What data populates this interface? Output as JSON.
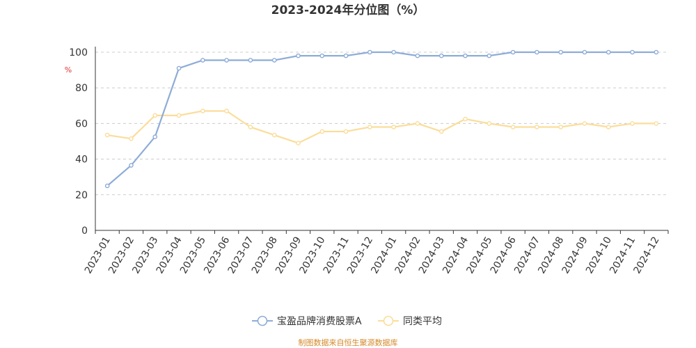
{
  "chart_data": {
    "type": "line",
    "title": "2023-2024年分位图（%）",
    "ylabel": "%",
    "xlabel": "",
    "ylim": [
      0,
      100
    ],
    "yticks": [
      0,
      20,
      40,
      60,
      80,
      100
    ],
    "grid": true,
    "legend_position": "bottom",
    "categories": [
      "2023-01",
      "2023-02",
      "2023-03",
      "2023-04",
      "2023-05",
      "2023-06",
      "2023-07",
      "2023-08",
      "2023-09",
      "2023-10",
      "2023-11",
      "2023-12",
      "2024-01",
      "2024-02",
      "2024-03",
      "2024-04",
      "2024-05",
      "2024-06",
      "2024-07",
      "2024-08",
      "2024-09",
      "2024-10",
      "2024-11",
      "2024-12"
    ],
    "series": [
      {
        "name": "宝盈品牌消费股票A",
        "color": "#8eacd8",
        "values": [
          25,
          36.5,
          52.5,
          91,
          95.5,
          95.5,
          95.5,
          95.5,
          98,
          98,
          98,
          100,
          100,
          98,
          98,
          98,
          98,
          100,
          100,
          100,
          100,
          100,
          100,
          100
        ]
      },
      {
        "name": "同类平均",
        "color": "#fbdd9a",
        "values": [
          53.5,
          51.5,
          64.5,
          64.5,
          67,
          67,
          58,
          53.5,
          49,
          55.5,
          55.5,
          58,
          58,
          60,
          55.5,
          62.5,
          60,
          58,
          58,
          58,
          60,
          58,
          60,
          60
        ]
      }
    ],
    "source": "制图数据来自恒生聚源数据库"
  }
}
